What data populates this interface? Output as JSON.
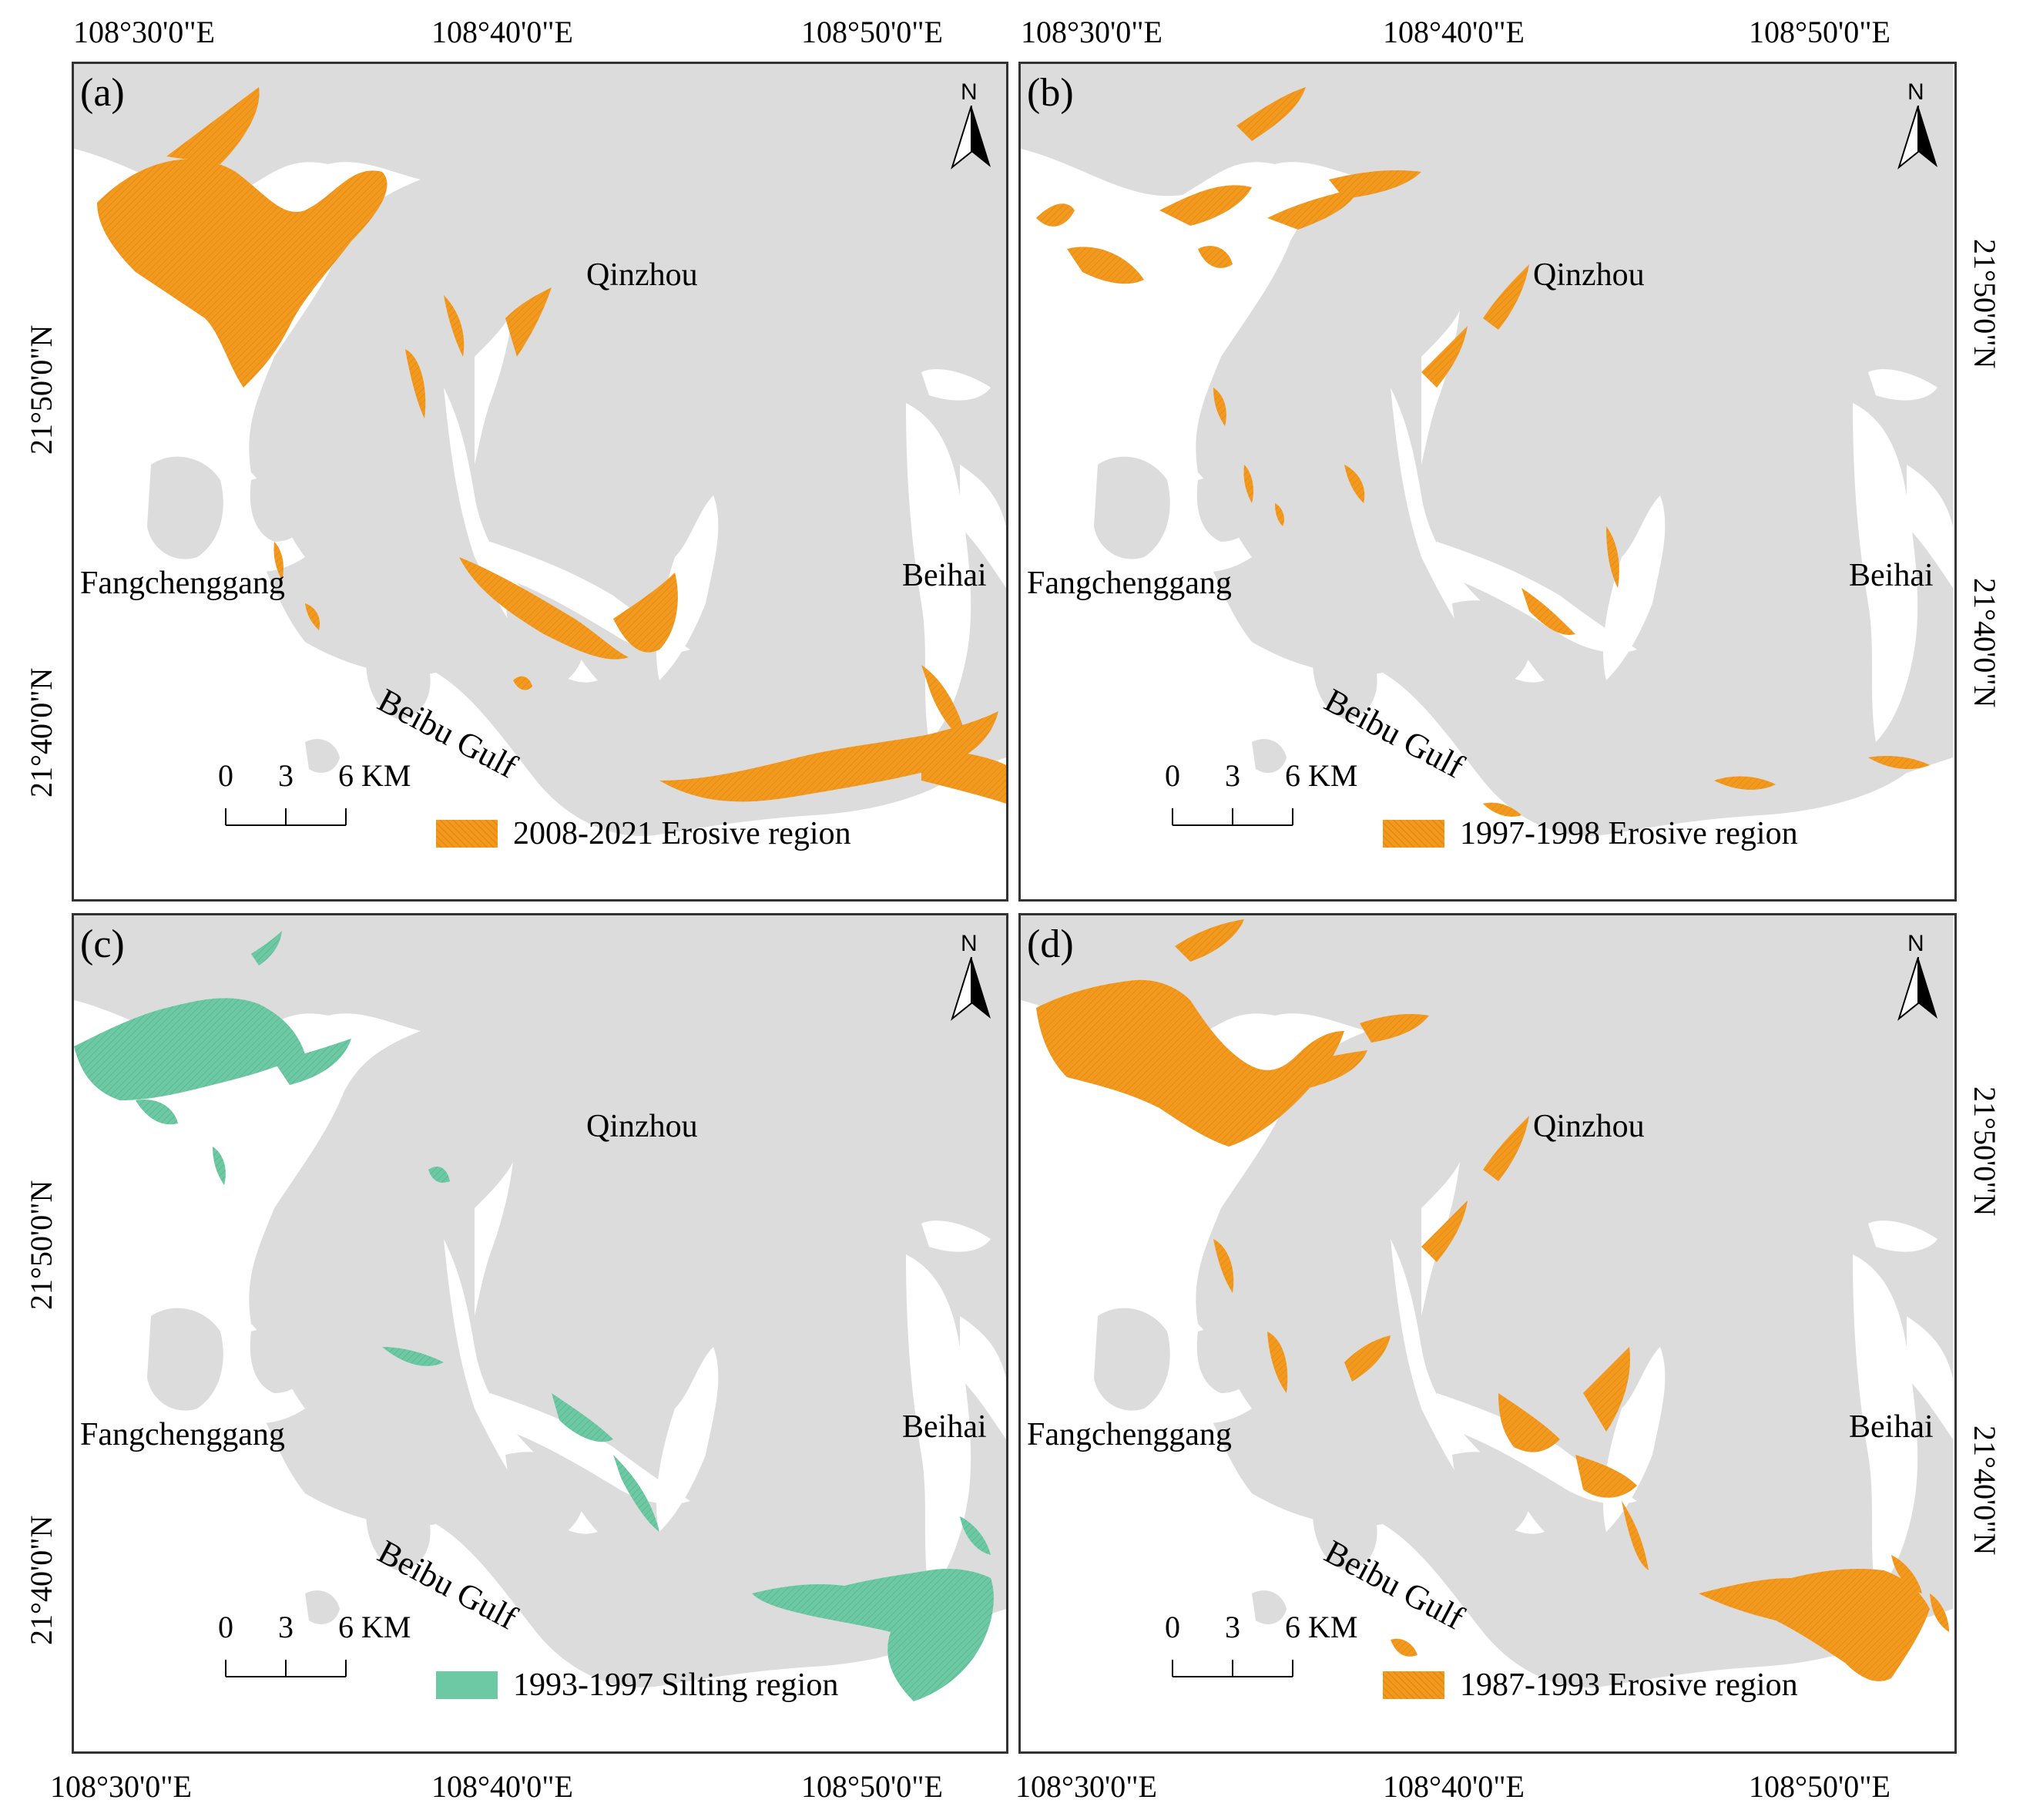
{
  "coords": {
    "lon": [
      "108°30'0\"E",
      "108°40'0\"E",
      "108°50'0\"E"
    ],
    "lat": [
      "21°50'0\"N",
      "21°40'0\"N"
    ]
  },
  "places": {
    "qinzhou": "Qinzhou",
    "fangchenggang": "Fangchenggang",
    "beihai": "Beihai",
    "gulf": "Beibu Gulf"
  },
  "north_letter": "N",
  "scale": {
    "labels": [
      "0",
      "3",
      "6"
    ],
    "unit": "KM"
  },
  "colors": {
    "land": "#dcdcdc",
    "water": "#ffffff",
    "erosive": "#f29a1f",
    "silting": "#6cc9a4"
  },
  "panels": [
    {
      "id": "a",
      "label": "(a)",
      "legend": "2008-2021 Erosive region",
      "kind": "erosive"
    },
    {
      "id": "b",
      "label": "(b)",
      "legend": "1997-1998 Erosive region",
      "kind": "erosive"
    },
    {
      "id": "c",
      "label": "(c)",
      "legend": "1993-1997 Silting region",
      "kind": "silting"
    },
    {
      "id": "d",
      "label": "(d)",
      "legend": "1987-1993 Erosive region",
      "kind": "erosive"
    }
  ]
}
